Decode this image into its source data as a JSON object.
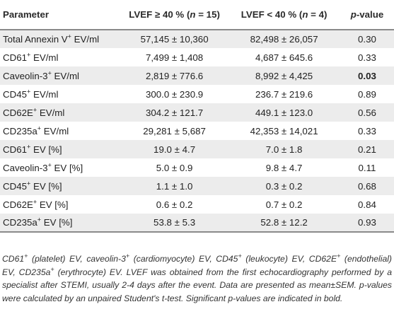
{
  "header": {
    "parameter": "Parameter",
    "group1": "LVEF ≥ 40 % (n = 15)",
    "group2": "LVEF < 40 % (n = 4)",
    "pvalue": "p-value"
  },
  "rows": [
    {
      "name": "Total Annexin V",
      "sup": "+",
      "suffix": " EV/ml",
      "g1": "57,145 ± 10,360",
      "g2": "82,498 ± 26,057",
      "p": "0.30",
      "bold": false
    },
    {
      "name": "CD61",
      "sup": "+",
      "suffix": " EV/ml",
      "g1": "7,499 ± 1,408",
      "g2": "4,687 ± 645.6",
      "p": "0.33",
      "bold": false
    },
    {
      "name": "Caveolin-3",
      "sup": "+",
      "suffix": " EV/ml",
      "g1": "2,819 ± 776.6",
      "g2": "8,992 ± 4,425",
      "p": "0.03",
      "bold": true
    },
    {
      "name": "CD45",
      "sup": "+",
      "suffix": " EV/ml",
      "g1": "300.0 ± 230.9",
      "g2": "236.7 ± 219.6",
      "p": "0.89",
      "bold": false
    },
    {
      "name": "CD62E",
      "sup": "+",
      "suffix": " EV/ml",
      "g1": "304.2 ± 121.7",
      "g2": "449.1 ± 123.0",
      "p": "0.56",
      "bold": false
    },
    {
      "name": "CD235a",
      "sup": "+",
      "suffix": " EV/ml",
      "g1": "29,281 ± 5,687",
      "g2": "42,353 ± 14,021",
      "p": "0.33",
      "bold": false
    },
    {
      "name": "CD61",
      "sup": "+",
      "suffix": " EV [%]",
      "g1": "19.0 ± 4.7",
      "g2": "7.0 ± 1.8",
      "p": "0.21",
      "bold": false
    },
    {
      "name": "Caveolin-3",
      "sup": "+",
      "suffix": " EV [%]",
      "g1": "5.0 ± 0.9",
      "g2": "9.8 ± 4.7",
      "p": "0.11",
      "bold": false
    },
    {
      "name": "CD45",
      "sup": "+",
      "suffix": " EV [%]",
      "g1": "1.1 ± 1.0",
      "g2": "0.3 ± 0.2",
      "p": "0.68",
      "bold": false
    },
    {
      "name": "CD62E",
      "sup": "+",
      "suffix": " EV [%]",
      "g1": "0.6 ± 0.2",
      "g2": "0.7 ± 0.2",
      "p": "0.84",
      "bold": false
    },
    {
      "name": "CD235a",
      "sup": "+",
      "suffix": " EV [%]",
      "g1": "53.8 ± 5.3",
      "g2": "52.8 ± 12.2",
      "p": "0.93",
      "bold": false
    }
  ],
  "footnote": {
    "abbrev": [
      {
        "name": "CD61",
        "sup": "+",
        "rest": " (platelet) EV, "
      },
      {
        "name": "caveolin-3",
        "sup": "+",
        "rest": " (cardiomyocyte) EV, "
      },
      {
        "name": "CD45",
        "sup": "+",
        "rest": " (leukocyte) EV, "
      },
      {
        "name": "CD62E",
        "sup": "+",
        "rest": " (endothelial) EV, "
      },
      {
        "name": "CD235a",
        "sup": "+",
        "rest": " (erythrocyte) EV."
      }
    ],
    "text": " LVEF was obtained from the first echocardiography performed by a specialist after STEMI, usually 2-4 days after the event. Data are presented as mean±SEM. p-values were calculated by an unpaired Student's t-test. Significant p-values are indicated in bold."
  }
}
